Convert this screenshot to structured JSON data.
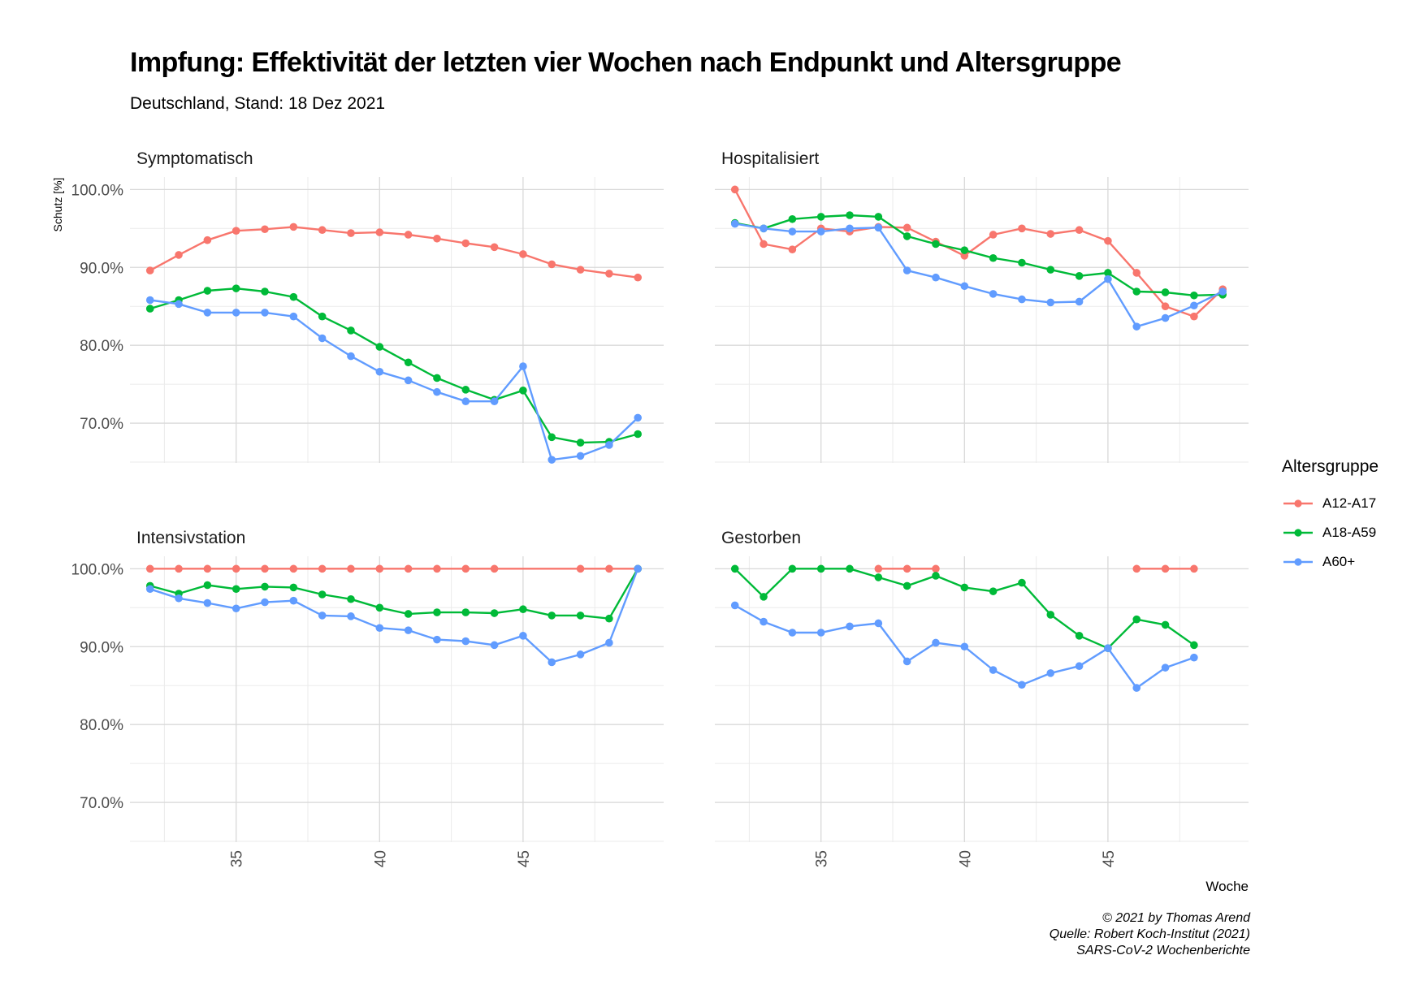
{
  "header": {
    "title": "Impfung: Effektivität der letzten vier Wochen nach Endpunkt und Altersgruppe",
    "subtitle": "Deutschland, Stand: 18 Dez 2021"
  },
  "caption": {
    "line1": "© 2021 by Thomas Arend",
    "line2": "Quelle: Robert Koch-Institut (2021)",
    "line3": "SARS-CoV-2 Wochenberichte"
  },
  "legend": {
    "title": "Altersgruppe",
    "items": [
      {
        "label": "A12-A17",
        "color": "#F8766D"
      },
      {
        "label": "A18-A59",
        "color": "#00BA38"
      },
      {
        "label": "A60+",
        "color": "#619CFF"
      }
    ]
  },
  "chart_data": {
    "type": "line",
    "xlabel": "Woche",
    "ylabel": "Schutz [%]",
    "xlim": [
      31.3,
      49.9
    ],
    "ylim": [
      64.9,
      101.6
    ],
    "x_ticks": [
      35,
      40,
      45
    ],
    "y_ticks": [
      70,
      80,
      90,
      100
    ],
    "y_tick_labels": [
      "70.0%",
      "80.0%",
      "90.0%",
      "100.0%"
    ],
    "grid": true,
    "legend_position": "right",
    "panels": [
      {
        "name": "Symptomatisch",
        "series": [
          {
            "name": "A12-A17",
            "x": [
              32,
              33,
              34,
              35,
              36,
              37,
              38,
              39,
              40,
              41,
              42,
              43,
              44,
              45,
              46,
              47,
              48,
              49
            ],
            "y": [
              89.6,
              91.6,
              93.5,
              94.7,
              94.9,
              95.2,
              94.8,
              94.4,
              94.5,
              94.2,
              93.7,
              93.1,
              92.6,
              91.7,
              90.4,
              89.7,
              89.2,
              88.7
            ]
          },
          {
            "name": "A18-A59",
            "x": [
              32,
              33,
              34,
              35,
              36,
              37,
              38,
              39,
              40,
              41,
              42,
              43,
              44,
              45,
              46,
              47,
              48,
              49
            ],
            "y": [
              84.7,
              85.8,
              87.0,
              87.3,
              86.9,
              86.2,
              83.7,
              81.9,
              79.8,
              77.8,
              75.8,
              74.3,
              73.0,
              74.2,
              68.2,
              67.5,
              67.6,
              68.6
            ]
          },
          {
            "name": "A60+",
            "x": [
              32,
              33,
              34,
              35,
              36,
              37,
              38,
              39,
              40,
              41,
              42,
              43,
              44,
              45,
              46,
              47,
              48,
              49
            ],
            "y": [
              85.8,
              85.3,
              84.2,
              84.2,
              84.2,
              83.7,
              80.9,
              78.6,
              76.6,
              75.5,
              74.0,
              72.8,
              72.8,
              77.3,
              65.3,
              65.8,
              67.2,
              70.7
            ]
          }
        ]
      },
      {
        "name": "Hospitalisiert",
        "series": [
          {
            "name": "A12-A17",
            "x": [
              32,
              33,
              34,
              35,
              36,
              37,
              38,
              39,
              40,
              41,
              42,
              43,
              44,
              45,
              46,
              47,
              48,
              49
            ],
            "y": [
              100.0,
              93.0,
              92.3,
              95.0,
              94.6,
              95.2,
              95.1,
              93.3,
              91.5,
              94.2,
              95.0,
              94.3,
              94.8,
              93.4,
              89.3,
              85.0,
              83.7,
              87.2
            ]
          },
          {
            "name": "A18-A59",
            "x": [
              32,
              33,
              34,
              35,
              36,
              37,
              38,
              39,
              40,
              41,
              42,
              43,
              44,
              45,
              46,
              47,
              48,
              49
            ],
            "y": [
              95.7,
              95.0,
              96.2,
              96.5,
              96.7,
              96.5,
              94.0,
              93.0,
              92.2,
              91.2,
              90.6,
              89.7,
              88.9,
              89.3,
              86.9,
              86.8,
              86.4,
              86.5
            ]
          },
          {
            "name": "A60+",
            "x": [
              32,
              33,
              34,
              35,
              36,
              37,
              38,
              39,
              40,
              41,
              42,
              43,
              44,
              45,
              46,
              47,
              48,
              49
            ],
            "y": [
              95.6,
              95.0,
              94.6,
              94.6,
              95.0,
              95.1,
              89.6,
              88.7,
              87.6,
              86.6,
              85.9,
              85.5,
              85.6,
              88.5,
              82.4,
              83.5,
              85.1,
              86.9
            ]
          }
        ]
      },
      {
        "name": "Intensivstation",
        "series": [
          {
            "name": "A12-A17",
            "x": [
              32,
              33,
              34,
              35,
              36,
              37,
              38,
              39,
              40,
              41,
              42,
              43,
              44,
              47,
              48,
              49
            ],
            "y": [
              100.0,
              100.0,
              100.0,
              100.0,
              100.0,
              100.0,
              100.0,
              100.0,
              100.0,
              100.0,
              100.0,
              100.0,
              100.0,
              100.0,
              100.0,
              100.0
            ]
          },
          {
            "name": "A18-A59",
            "x": [
              32,
              33,
              34,
              35,
              36,
              37,
              38,
              39,
              40,
              41,
              42,
              43,
              44,
              45,
              46,
              47,
              48,
              49
            ],
            "y": [
              97.8,
              96.8,
              97.9,
              97.4,
              97.7,
              97.6,
              96.7,
              96.1,
              95.0,
              94.2,
              94.4,
              94.4,
              94.3,
              94.8,
              94.0,
              94.0,
              93.6,
              100.0
            ]
          },
          {
            "name": "A60+",
            "x": [
              32,
              33,
              34,
              35,
              36,
              37,
              38,
              39,
              40,
              41,
              42,
              43,
              44,
              45,
              46,
              47,
              48,
              49
            ],
            "y": [
              97.4,
              96.2,
              95.6,
              94.9,
              95.7,
              95.9,
              94.0,
              93.9,
              92.4,
              92.1,
              90.9,
              90.7,
              90.2,
              91.4,
              88.0,
              89.0,
              90.5,
              100.0
            ]
          }
        ]
      },
      {
        "name": "Gestorben",
        "series": [
          {
            "name": "A12-A17",
            "segments": [
              {
                "x": [
                  37,
                  38,
                  39
                ],
                "y": [
                  100.0,
                  100.0,
                  100.0
                ]
              },
              {
                "x": [
                  46,
                  47,
                  48
                ],
                "y": [
                  100.0,
                  100.0,
                  100.0
                ]
              }
            ]
          },
          {
            "name": "A18-A59",
            "x": [
              32,
              33,
              34,
              35,
              36,
              37,
              38,
              39,
              40,
              41,
              42,
              43,
              44,
              45,
              46,
              47,
              48
            ],
            "y": [
              100.0,
              96.4,
              100.0,
              100.0,
              100.0,
              98.9,
              97.8,
              99.1,
              97.6,
              97.1,
              98.2,
              94.1,
              91.4,
              89.8,
              93.5,
              92.8,
              90.2
            ]
          },
          {
            "name": "A60+",
            "x": [
              32,
              33,
              34,
              35,
              36,
              37,
              38,
              39,
              40,
              41,
              42,
              43,
              44,
              45,
              46,
              47,
              48
            ],
            "y": [
              95.3,
              93.2,
              91.8,
              91.8,
              92.6,
              93.0,
              88.1,
              90.5,
              90.0,
              87.0,
              85.1,
              86.6,
              87.5,
              89.8,
              84.7,
              87.3,
              88.6
            ]
          }
        ]
      }
    ]
  }
}
